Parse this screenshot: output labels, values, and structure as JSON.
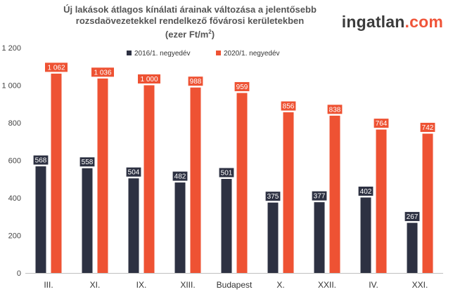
{
  "title": {
    "line1": "Új lakások átlagos kínálati árainak változása a jelentősebb",
    "line2": "rozsdaövezetekkel rendelkező fővárosi kerületekben",
    "line3_pre": "(ezer Ft/m",
    "line3_sup": "2",
    "line3_post": ")"
  },
  "logo": {
    "part1": "ingatlan",
    "part2": ".com"
  },
  "chart_data": {
    "type": "bar",
    "categories": [
      "III.",
      "XI.",
      "IX.",
      "XIII.",
      "Budapest",
      "X.",
      "XXII.",
      "IV.",
      "XXI."
    ],
    "series": [
      {
        "name": "2016/1. negyedév",
        "values": [
          568,
          558,
          504,
          482,
          501,
          375,
          377,
          402,
          267
        ],
        "labels": [
          "568",
          "558",
          "504",
          "482",
          "501",
          "375",
          "377",
          "402",
          "267"
        ],
        "color": "#2d3142"
      },
      {
        "name": "2020/1. negyedév",
        "values": [
          1062,
          1036,
          1000,
          988,
          959,
          856,
          838,
          764,
          742
        ],
        "labels": [
          "1 062",
          "1 036",
          "1 000",
          "988",
          "959",
          "856",
          "838",
          "764",
          "742"
        ],
        "color": "#ee5233"
      }
    ],
    "ylim": [
      0,
      1200
    ],
    "yticks": [
      0,
      200,
      400,
      600,
      800,
      1000,
      1200
    ],
    "ytick_labels": [
      "0",
      "200",
      "400",
      "600",
      "800",
      "1 000",
      "1 200"
    ],
    "legend_position": "top",
    "grid": false
  }
}
